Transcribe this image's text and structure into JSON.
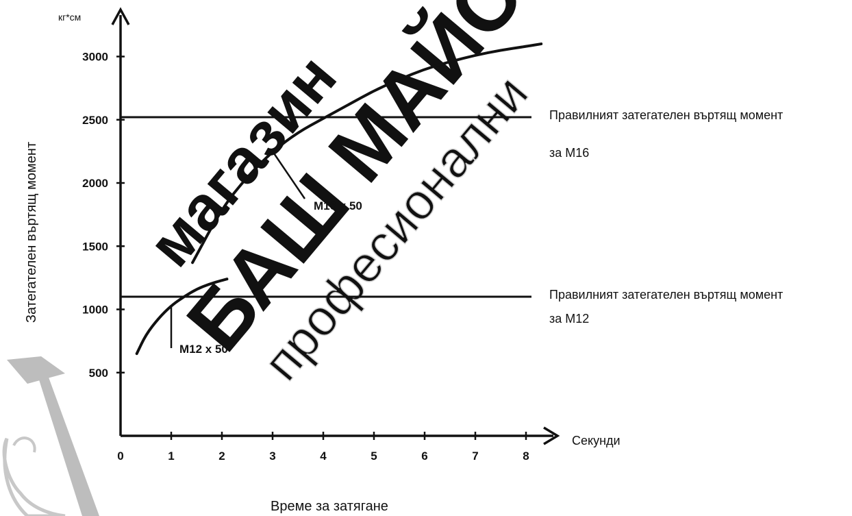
{
  "chart_data": {
    "type": "line",
    "xlabel": "Време за затягане",
    "x_unit_label": "Секунди",
    "ylabel": "Затегателен въртящ момент",
    "y_unit_label": "кг*см",
    "xlim": [
      0,
      8.5
    ],
    "ylim": [
      0,
      3200
    ],
    "x_ticks": [
      0,
      1,
      2,
      3,
      4,
      5,
      6,
      7,
      8
    ],
    "y_ticks": [
      500,
      1000,
      1500,
      2000,
      2500,
      3000
    ],
    "grid": false,
    "series": [
      {
        "name": "M16 x 50",
        "x": [
          1.42,
          2.0,
          2.5,
          3.0,
          3.5,
          4.0,
          4.5,
          5.0,
          5.5,
          6.0,
          6.5,
          7.0,
          7.5,
          8.0,
          8.3
        ],
        "y": [
          1370,
          1800,
          2050,
          2250,
          2400,
          2510,
          2620,
          2730,
          2820,
          2900,
          2960,
          3010,
          3050,
          3080,
          3100
        ]
      },
      {
        "name": "M12 x 50",
        "x": [
          0.32,
          0.5,
          0.75,
          1.0,
          1.25,
          1.5,
          1.75,
          2.0,
          2.1
        ],
        "y": [
          650,
          800,
          930,
          1030,
          1100,
          1160,
          1200,
          1230,
          1240
        ]
      }
    ],
    "reference_lines": [
      {
        "y": 2520,
        "label_line1": "Правилният затегателен въртящ момент",
        "label_line2": "за М16"
      },
      {
        "y": 1100,
        "label_line1": "Правилният затегателен въртящ момент",
        "label_line2": "за М12"
      }
    ]
  },
  "watermark": {
    "line1": "магазин",
    "line2": "БАШ МАЙСТОР",
    "line3": "професионални"
  },
  "colors": {
    "ink": "#111111",
    "watermark": "#d9d9d9",
    "logo": "#bdbdbd"
  }
}
